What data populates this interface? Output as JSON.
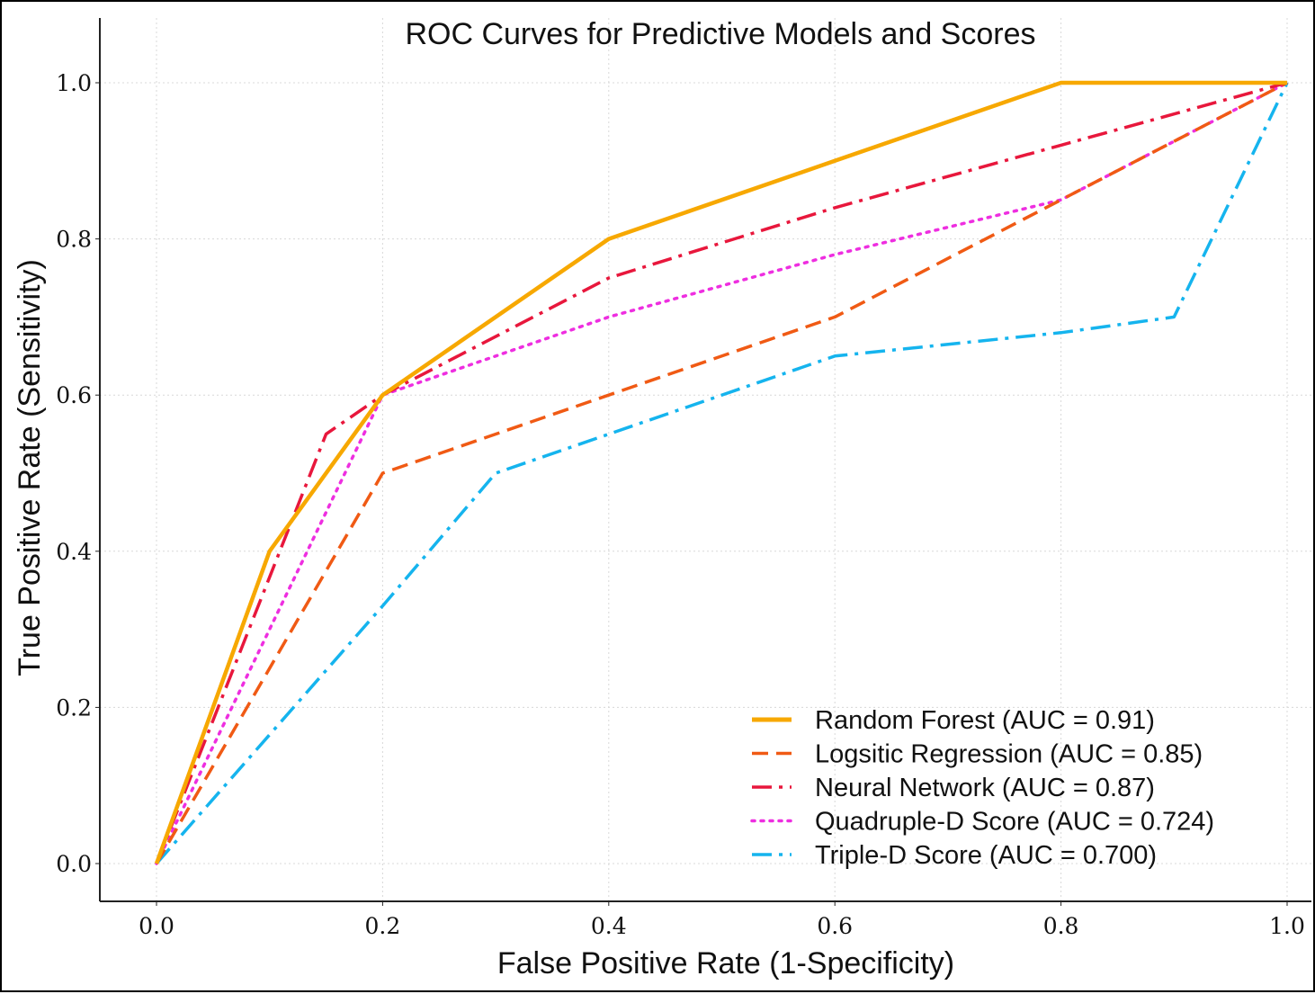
{
  "chart_data": {
    "type": "line",
    "title": "ROC Curves for Predictive Models and Scores",
    "xlabel": "False Positive Rate (1-Specificity)",
    "ylabel": "True Positive Rate (Sensitivity)",
    "xlim": [
      -0.05,
      1.02
    ],
    "ylim": [
      -0.05,
      1.05
    ],
    "xticks": [
      "0.0",
      "0.2",
      "0.4",
      "0.6",
      "0.8",
      "1.0"
    ],
    "xtick_values": [
      0.0,
      0.2,
      0.4,
      0.6,
      0.8,
      1.0
    ],
    "yticks": [
      "0.0",
      "0.2",
      "0.4",
      "0.6",
      "0.8",
      "1.0"
    ],
    "ytick_values": [
      0.0,
      0.2,
      0.4,
      0.6,
      0.8,
      1.0
    ],
    "grid": true,
    "legend_position": "bottom-right",
    "series": [
      {
        "name": "Random Forest (AUC = 0.91)",
        "color": "#F7A800",
        "line_style": "solid",
        "x": [
          0.0,
          0.1,
          0.2,
          0.4,
          0.6,
          0.8,
          1.0
        ],
        "y": [
          0.0,
          0.4,
          0.6,
          0.8,
          0.9,
          1.0,
          1.0
        ]
      },
      {
        "name": "Logsitic Regression (AUC = 0.85)",
        "color": "#F05A14",
        "line_style": "dashed",
        "x": [
          0.0,
          0.2,
          0.4,
          0.6,
          0.8,
          1.0
        ],
        "y": [
          0.0,
          0.5,
          0.6,
          0.7,
          0.85,
          1.0
        ]
      },
      {
        "name": "Neural Network (AUC = 0.87)",
        "color": "#E8173C",
        "line_style": "dashdot",
        "x": [
          0.0,
          0.15,
          0.2,
          0.4,
          0.6,
          0.8,
          1.0
        ],
        "y": [
          0.0,
          0.55,
          0.6,
          0.75,
          0.84,
          0.92,
          1.0
        ]
      },
      {
        "name": "Quadruple-D Score (AUC = 0.724)",
        "color": "#EE2EE0",
        "line_style": "dotted",
        "x": [
          0.0,
          0.2,
          0.4,
          0.6,
          0.8,
          1.0
        ],
        "y": [
          0.0,
          0.6,
          0.7,
          0.78,
          0.85,
          1.0
        ]
      },
      {
        "name": "Triple-D Score (AUC = 0.700)",
        "color": "#15B4EE",
        "line_style": "dashdot",
        "x": [
          0.0,
          0.2,
          0.3,
          0.4,
          0.6,
          0.8,
          0.9,
          1.0
        ],
        "y": [
          0.0,
          0.33,
          0.5,
          0.55,
          0.65,
          0.68,
          0.7,
          1.0
        ]
      }
    ]
  }
}
